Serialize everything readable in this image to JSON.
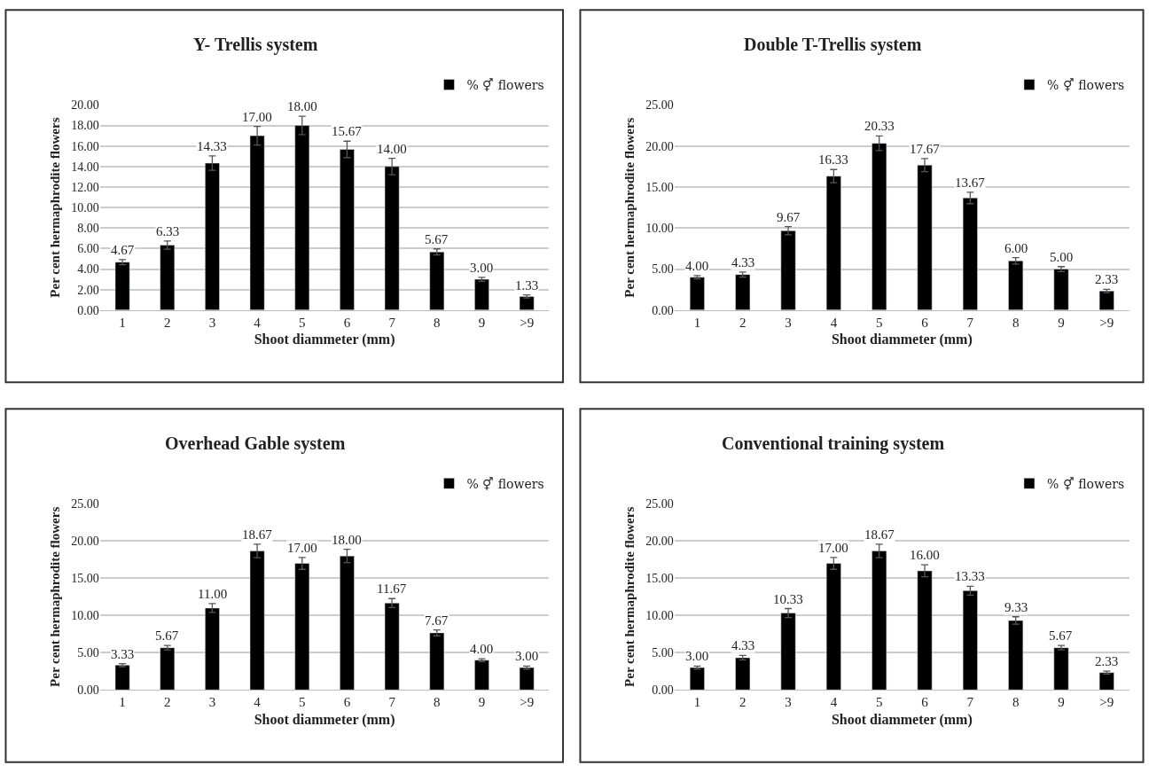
{
  "chart_data": [
    {
      "type": "bar",
      "title": "Y- Trellis system",
      "xlabel": "Shoot diammeter (mm)",
      "ylabel": "Per cent hermaphrodite flowers",
      "categories": [
        "1",
        "2",
        "3",
        "4",
        "5",
        "6",
        "7",
        "8",
        "9",
        ">9"
      ],
      "series": [
        {
          "name": "% ⚥ flowers",
          "color": "#000000",
          "values": [
            4.67,
            6.33,
            14.33,
            17.0,
            18.0,
            15.67,
            14.0,
            5.67,
            3.0,
            1.33
          ],
          "value_labels": [
            "4.67",
            "6.33",
            "14.33",
            "17.00",
            "18.00",
            "15.67",
            "14.00",
            "5.67",
            "3.00",
            "1.33"
          ],
          "errors": [
            0.25,
            0.4,
            0.7,
            0.9,
            0.9,
            0.8,
            0.8,
            0.3,
            0.2,
            0.15
          ]
        }
      ],
      "ylim": [
        0,
        20
      ],
      "yticks": [
        {
          "value": 0,
          "label": "0.00"
        },
        {
          "value": 2,
          "label": "2.00"
        },
        {
          "value": 4,
          "label": "4.00"
        },
        {
          "value": 6,
          "label": "6.00"
        },
        {
          "value": 8,
          "label": "8.00"
        },
        {
          "value": 10,
          "label": "10.00"
        },
        {
          "value": 12,
          "label": "12.00"
        },
        {
          "value": 14,
          "label": "14.00"
        },
        {
          "value": 16,
          "label": "16.00"
        },
        {
          "value": 18,
          "label": "18.00"
        },
        {
          "value": 20,
          "label": "20.00"
        }
      ],
      "grid": "y",
      "legend": "top right"
    },
    {
      "type": "bar",
      "title": "Double T-Trellis system",
      "xlabel": "Shoot diammeter (mm)",
      "ylabel": "Per cent hermaphrodite flowers",
      "categories": [
        "1",
        "2",
        "3",
        "4",
        "5",
        "6",
        "7",
        "8",
        "9",
        ">9"
      ],
      "series": [
        {
          "name": "% ⚥ flowers",
          "color": "#000000",
          "values": [
            4.0,
            4.33,
            9.67,
            16.33,
            20.33,
            17.67,
            13.67,
            6.0,
            5.0,
            2.33
          ],
          "value_labels": [
            "4.00",
            "4.33",
            "9.67",
            "16.33",
            "20.33",
            "17.67",
            "13.67",
            "6.00",
            "5.00",
            "2.33"
          ],
          "errors": [
            0.2,
            0.3,
            0.5,
            0.8,
            0.9,
            0.8,
            0.7,
            0.4,
            0.3,
            0.2
          ]
        }
      ],
      "ylim": [
        0,
        25
      ],
      "yticks": [
        {
          "value": 0,
          "label": "0.00"
        },
        {
          "value": 5,
          "label": "5.00"
        },
        {
          "value": 10,
          "label": "10.00"
        },
        {
          "value": 15,
          "label": "15.00"
        },
        {
          "value": 20,
          "label": "20.00"
        },
        {
          "value": 25,
          "label": "25.00"
        }
      ],
      "grid": "y",
      "legend": "top right"
    },
    {
      "type": "bar",
      "title": "Overhead Gable system",
      "xlabel": "Shoot diammeter (mm)",
      "ylabel": "Per cent hermaphrodite flowers",
      "categories": [
        "1",
        "2",
        "3",
        "4",
        "5",
        "6",
        "7",
        "8",
        "9",
        ">9"
      ],
      "series": [
        {
          "name": "% ⚥ flowers",
          "color": "#000000",
          "values": [
            3.33,
            5.67,
            11.0,
            18.67,
            17.0,
            18.0,
            11.67,
            7.67,
            4.0,
            3.0
          ],
          "value_labels": [
            "3.33",
            "5.67",
            "11.00",
            "18.67",
            "17.00",
            "18.00",
            "11.67",
            "7.67",
            "4.00",
            "3.00"
          ],
          "errors": [
            0.2,
            0.3,
            0.6,
            0.9,
            0.8,
            0.9,
            0.6,
            0.4,
            0.2,
            0.2
          ]
        }
      ],
      "ylim": [
        0,
        25
      ],
      "yticks": [
        {
          "value": 0,
          "label": "0.00"
        },
        {
          "value": 5,
          "label": "5.00"
        },
        {
          "value": 10,
          "label": "10.00"
        },
        {
          "value": 15,
          "label": "15.00"
        },
        {
          "value": 20,
          "label": "20.00"
        },
        {
          "value": 25,
          "label": "25.00"
        }
      ],
      "grid": "y",
      "legend": "top right"
    },
    {
      "type": "bar",
      "title": "Conventional training system",
      "xlabel": "Shoot diammeter (mm)",
      "ylabel": "Per cent hermaphrodite flowers",
      "categories": [
        "1",
        "2",
        "3",
        "4",
        "5",
        "6",
        "7",
        "8",
        "9",
        ">9"
      ],
      "series": [
        {
          "name": "% ⚥ flowers",
          "color": "#000000",
          "values": [
            3.0,
            4.33,
            10.33,
            17.0,
            18.67,
            16.0,
            13.33,
            9.33,
            5.67,
            2.33
          ],
          "value_labels": [
            "3.00",
            "4.33",
            "10.33",
            "17.00",
            "18.67",
            "16.00",
            "13.33",
            "9.33",
            "5.67",
            "2.33"
          ],
          "errors": [
            0.2,
            0.3,
            0.6,
            0.8,
            0.9,
            0.8,
            0.6,
            0.5,
            0.3,
            0.2
          ]
        }
      ],
      "ylim": [
        0,
        25
      ],
      "yticks": [
        {
          "value": 0,
          "label": "0.00"
        },
        {
          "value": 5,
          "label": "5.00"
        },
        {
          "value": 10,
          "label": "10.00"
        },
        {
          "value": 15,
          "label": "15.00"
        },
        {
          "value": 20,
          "label": "20.00"
        },
        {
          "value": 25,
          "label": "25.00"
        }
      ],
      "grid": "y",
      "legend": "top right"
    }
  ]
}
